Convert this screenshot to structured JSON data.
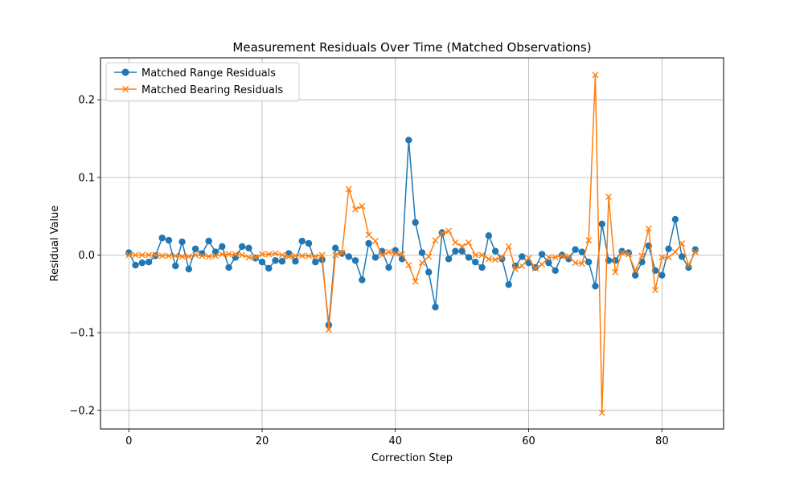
{
  "chart_data": {
    "type": "line",
    "title": "Measurement Residuals Over Time (Matched Observations)",
    "xlabel": "Correction Step",
    "ylabel": "Residual Value",
    "xlim": [
      -4.25,
      89.25
    ],
    "ylim": [
      -0.224,
      0.254
    ],
    "xticks": [
      0,
      20,
      40,
      60,
      80
    ],
    "yticks": [
      -0.2,
      -0.1,
      0.0,
      0.1,
      0.2
    ],
    "xtick_labels": [
      "0",
      "20",
      "40",
      "60",
      "80"
    ],
    "ytick_labels": [
      "−0.2",
      "−0.1",
      "0.0",
      "0.1",
      "0.2"
    ],
    "grid": true,
    "legend_position": "top-left",
    "series": [
      {
        "name": "Matched Range Residuals",
        "color": "#1f77b4",
        "marker": "circle",
        "values": [
          0.003,
          -0.013,
          -0.01,
          -0.009,
          -0.001,
          0.022,
          0.019,
          -0.014,
          0.017,
          -0.018,
          0.008,
          0.002,
          0.018,
          0.004,
          0.011,
          -0.016,
          -0.003,
          0.011,
          0.009,
          -0.004,
          -0.009,
          -0.017,
          -0.007,
          -0.008,
          0.002,
          -0.008,
          0.018,
          0.015,
          -0.009,
          -0.006,
          -0.09,
          0.009,
          0.002,
          -0.002,
          -0.007,
          -0.032,
          0.015,
          -0.003,
          0.005,
          -0.016,
          0.006,
          -0.005,
          0.148,
          0.042,
          0.003,
          -0.022,
          -0.067,
          0.029,
          -0.005,
          0.005,
          0.005,
          -0.003,
          -0.009,
          -0.016,
          0.025,
          0.005,
          -0.005,
          -0.038,
          -0.014,
          -0.002,
          -0.01,
          -0.016,
          0.001,
          -0.01,
          -0.02,
          0.0,
          -0.005,
          0.007,
          0.004,
          -0.009,
          -0.04,
          0.04,
          -0.007,
          -0.007,
          0.005,
          0.003,
          -0.026,
          -0.009,
          0.012,
          -0.02,
          -0.026,
          0.008,
          0.046,
          -0.002,
          -0.016,
          0.007
        ]
      },
      {
        "name": "Matched Bearing Residuals",
        "color": "#ff7f0e",
        "marker": "x",
        "values": [
          0.0,
          0.0,
          0.0,
          0.0,
          0.0,
          -0.001,
          -0.001,
          -0.001,
          -0.002,
          -0.002,
          0.0,
          -0.001,
          -0.002,
          -0.001,
          0.001,
          0.001,
          0.001,
          0.0,
          -0.003,
          -0.003,
          0.001,
          0.001,
          0.002,
          0.0,
          -0.002,
          -0.001,
          -0.001,
          -0.001,
          -0.002,
          0.0,
          -0.096,
          0.0,
          0.003,
          0.085,
          0.059,
          0.063,
          0.026,
          0.018,
          0.0,
          0.004,
          0.002,
          0.001,
          -0.013,
          -0.034,
          -0.01,
          -0.002,
          0.019,
          0.028,
          0.031,
          0.016,
          0.011,
          0.016,
          0.0,
          0.0,
          -0.005,
          -0.006,
          -0.003,
          0.011,
          -0.018,
          -0.014,
          -0.004,
          -0.017,
          -0.012,
          -0.003,
          -0.003,
          -0.001,
          -0.002,
          -0.01,
          -0.011,
          0.019,
          0.232,
          -0.203,
          0.075,
          -0.022,
          0.003,
          0.001,
          -0.02,
          -0.001,
          0.034,
          -0.045,
          -0.003,
          -0.003,
          0.004,
          0.015,
          -0.013,
          0.004
        ]
      }
    ]
  }
}
